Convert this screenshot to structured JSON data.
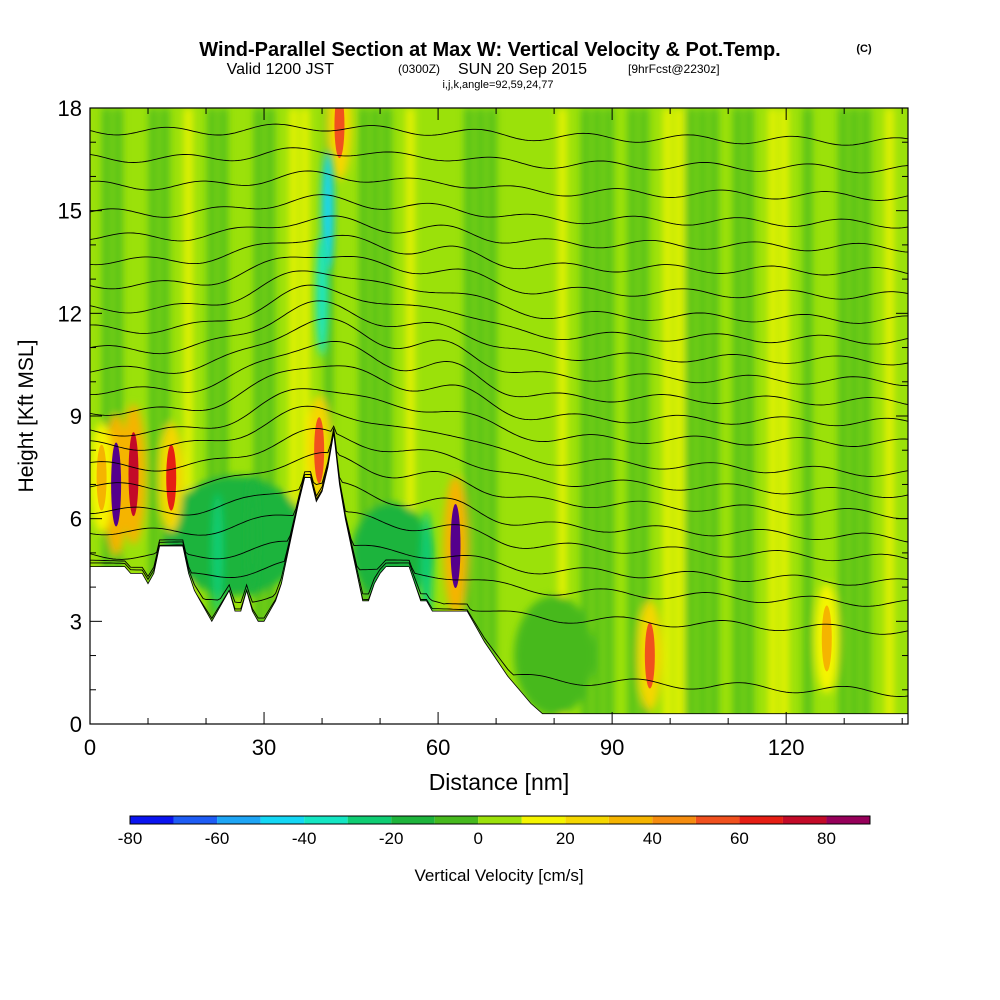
{
  "header": {
    "title": "Wind-Parallel Section at Max W: Vertical Velocity & Pot.Temp.",
    "title_mark": "(C)",
    "valid_prefix": "Valid 1200 JST",
    "valid_utc": "(0300Z)",
    "valid_date": "SUN 20 Sep 2015",
    "forecast": "[9hrFcst@2230z]",
    "indices": "i,j,k,angle=92,59,24,77"
  },
  "chart_data": {
    "type": "heatmap",
    "xlabel": "Distance [nm]",
    "ylabel": "Height [Kft MSL]",
    "xlim": [
      0,
      141
    ],
    "ylim": [
      0,
      18
    ],
    "x_ticks": [
      "0",
      "30",
      "60",
      "90",
      "120"
    ],
    "x_tick_values": [
      0,
      30,
      60,
      90,
      120
    ],
    "y_ticks": [
      "0",
      "3",
      "6",
      "9",
      "12",
      "15",
      "18"
    ],
    "y_tick_values": [
      0,
      3,
      6,
      9,
      12,
      15,
      18
    ],
    "terrain_profile": {
      "x": [
        0,
        6,
        7,
        9,
        10,
        11,
        12,
        13,
        16,
        17,
        18,
        19,
        20,
        21,
        22,
        23,
        24,
        25,
        26,
        27,
        28,
        29,
        30,
        31,
        32,
        33,
        34,
        35,
        36,
        37,
        38,
        39,
        40,
        41,
        42,
        43,
        44,
        45,
        46,
        47,
        48,
        49,
        50,
        51,
        52,
        53,
        54,
        55,
        56,
        57,
        58,
        59,
        60,
        61,
        62,
        63,
        64,
        65,
        66,
        67,
        68,
        70,
        72,
        74,
        76,
        78,
        80,
        141
      ],
      "y": [
        4.6,
        4.6,
        4.4,
        4.4,
        4.1,
        4.4,
        5.2,
        5.2,
        5.2,
        4.4,
        3.9,
        3.6,
        3.3,
        3.0,
        3.3,
        3.6,
        3.9,
        3.3,
        3.3,
        3.9,
        3.3,
        3.0,
        3.0,
        3.3,
        3.6,
        4.1,
        4.9,
        5.7,
        6.5,
        7.2,
        7.2,
        6.5,
        6.8,
        7.5,
        8.5,
        7.0,
        6.0,
        5.2,
        4.4,
        3.6,
        3.6,
        4.1,
        4.4,
        4.6,
        4.6,
        4.6,
        4.6,
        4.6,
        4.1,
        3.6,
        3.6,
        3.3,
        3.3,
        3.3,
        3.3,
        3.3,
        3.3,
        3.3,
        3.0,
        2.7,
        2.4,
        1.9,
        1.4,
        1.0,
        0.6,
        0.3,
        0.3,
        0.3
      ]
    },
    "updrafts": [
      {
        "x": 4.5,
        "y": 7.0,
        "w": 95
      },
      {
        "x": 7.5,
        "y": 7.3,
        "w": 75
      },
      {
        "x": 14,
        "y": 7.2,
        "w": 60
      },
      {
        "x": 2,
        "y": 7.2,
        "w": 35
      },
      {
        "x": 39.5,
        "y": 8.0,
        "w": 55
      },
      {
        "x": 43,
        "y": 17.5,
        "w": 55
      },
      {
        "x": 63,
        "y": 5.2,
        "w": 90
      },
      {
        "x": 96.5,
        "y": 2.0,
        "w": 50
      },
      {
        "x": 127,
        "y": 2.5,
        "w": 30
      }
    ],
    "downdrafts": [
      {
        "x": 41,
        "y": 15.0,
        "w": -50
      },
      {
        "x": 40,
        "y": 12.5,
        "w": -40
      },
      {
        "x": 58,
        "y": 4.5,
        "w": -30
      },
      {
        "x": 22,
        "y": 5.0,
        "w": -25
      },
      {
        "x": 28,
        "y": 5.5,
        "w": -20
      }
    ],
    "theta_contours": [
      {
        "base": 1.4,
        "amp": 0.8
      },
      {
        "base": 3.2,
        "amp": 0.6
      },
      {
        "base": 4.0,
        "amp": 0.6
      },
      {
        "base": 4.6,
        "amp": 0.6
      },
      {
        "base": 5.3,
        "amp": 0.8
      },
      {
        "base": 5.9,
        "amp": 1.0
      },
      {
        "base": 6.6,
        "amp": 1.1
      },
      {
        "base": 7.2,
        "amp": 1.2
      },
      {
        "base": 7.8,
        "amp": 1.3
      },
      {
        "base": 8.4,
        "amp": 1.4
      },
      {
        "base": 9.0,
        "amp": 1.5
      },
      {
        "base": 9.6,
        "amp": 1.5
      },
      {
        "base": 10.2,
        "amp": 1.5
      },
      {
        "base": 10.8,
        "amp": 1.4
      },
      {
        "base": 11.4,
        "amp": 1.3
      },
      {
        "base": 12.0,
        "amp": 1.2
      },
      {
        "base": 12.7,
        "amp": 1.0
      },
      {
        "base": 13.4,
        "amp": 0.8
      },
      {
        "base": 14.1,
        "amp": 0.6
      },
      {
        "base": 14.8,
        "amp": 0.5
      },
      {
        "base": 15.6,
        "amp": 0.4
      },
      {
        "base": 16.4,
        "amp": 0.3
      },
      {
        "base": 17.2,
        "amp": 0.2
      }
    ],
    "colorbar": {
      "label": "Vertical Velocity [cm/s]",
      "tick_labels": [
        "-80",
        "-60",
        "-40",
        "-20",
        "0",
        "20",
        "40",
        "60",
        "80"
      ],
      "tick_values": [
        -80,
        -60,
        -40,
        -20,
        0,
        20,
        40,
        60,
        80
      ],
      "bins": [
        -80,
        -70,
        -60,
        -50,
        -40,
        -30,
        -20,
        -10,
        0,
        10,
        20,
        30,
        40,
        50,
        60,
        70,
        80,
        90
      ],
      "colors": [
        "#0a14f0",
        "#1e5cf5",
        "#1ea5f5",
        "#14d7f5",
        "#14e6c3",
        "#0fcd73",
        "#1eb43c",
        "#46b91e",
        "#9be10a",
        "#f5f500",
        "#f5d700",
        "#f5b400",
        "#f58c0f",
        "#f0501e",
        "#e61e14",
        "#c30a28",
        "#96005a",
        "#55008c"
      ]
    }
  }
}
